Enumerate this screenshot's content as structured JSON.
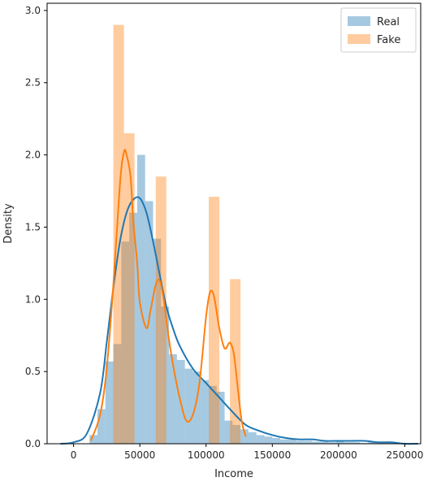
{
  "chart_data": {
    "type": "histogram",
    "xlabel": "Income",
    "ylabel": "Density",
    "xlim": [
      -20000,
      262000
    ],
    "ylim": [
      0,
      3.05
    ],
    "xticks": [
      0,
      50000,
      100000,
      150000,
      200000,
      250000
    ],
    "xtick_labels": [
      "0",
      "50000",
      "100000",
      "150000",
      "200000",
      "250000"
    ],
    "yticks": [
      0.0,
      0.5,
      1.0,
      1.5,
      2.0,
      2.5,
      3.0
    ],
    "ytick_labels": [
      "0.0",
      "0.5",
      "1.0",
      "1.5",
      "2.0",
      "2.5",
      "3.0"
    ],
    "scale_note": "density values in units of 1e-5",
    "legend_position": "upper right",
    "series": [
      {
        "name": "Real",
        "color": "#1f77b4",
        "bins": [
          {
            "x0": 12000,
            "x1": 18000,
            "value": 0.06
          },
          {
            "x0": 18000,
            "x1": 24000,
            "value": 0.24
          },
          {
            "x0": 24000,
            "x1": 30000,
            "value": 0.57
          },
          {
            "x0": 30000,
            "x1": 36000,
            "value": 0.69
          },
          {
            "x0": 36000,
            "x1": 42000,
            "value": 1.4
          },
          {
            "x0": 42000,
            "x1": 48000,
            "value": 1.6
          },
          {
            "x0": 48000,
            "x1": 54000,
            "value": 2.0
          },
          {
            "x0": 54000,
            "x1": 60000,
            "value": 1.68
          },
          {
            "x0": 60000,
            "x1": 66000,
            "value": 1.42
          },
          {
            "x0": 66000,
            "x1": 72000,
            "value": 0.95
          },
          {
            "x0": 72000,
            "x1": 78000,
            "value": 0.62
          },
          {
            "x0": 78000,
            "x1": 84000,
            "value": 0.58
          },
          {
            "x0": 84000,
            "x1": 90000,
            "value": 0.52
          },
          {
            "x0": 90000,
            "x1": 96000,
            "value": 0.5
          },
          {
            "x0": 96000,
            "x1": 102000,
            "value": 0.44
          },
          {
            "x0": 102000,
            "x1": 108000,
            "value": 0.4
          },
          {
            "x0": 108000,
            "x1": 114000,
            "value": 0.36
          },
          {
            "x0": 114000,
            "x1": 120000,
            "value": 0.16
          },
          {
            "x0": 120000,
            "x1": 126000,
            "value": 0.13
          },
          {
            "x0": 126000,
            "x1": 132000,
            "value": 0.1
          },
          {
            "x0": 132000,
            "x1": 138000,
            "value": 0.08
          },
          {
            "x0": 138000,
            "x1": 144000,
            "value": 0.06
          },
          {
            "x0": 144000,
            "x1": 150000,
            "value": 0.05
          },
          {
            "x0": 150000,
            "x1": 156000,
            "value": 0.04
          },
          {
            "x0": 156000,
            "x1": 162000,
            "value": 0.03
          },
          {
            "x0": 162000,
            "x1": 168000,
            "value": 0.03
          },
          {
            "x0": 168000,
            "x1": 174000,
            "value": 0.02
          },
          {
            "x0": 174000,
            "x1": 180000,
            "value": 0.02
          },
          {
            "x0": 180000,
            "x1": 186000,
            "value": 0.015
          },
          {
            "x0": 186000,
            "x1": 192000,
            "value": 0.015
          },
          {
            "x0": 192000,
            "x1": 198000,
            "value": 0.01
          },
          {
            "x0": 198000,
            "x1": 204000,
            "value": 0.02
          },
          {
            "x0": 204000,
            "x1": 210000,
            "value": 0.01
          },
          {
            "x0": 210000,
            "x1": 216000,
            "value": 0.01
          },
          {
            "x0": 216000,
            "x1": 222000,
            "value": 0.005
          },
          {
            "x0": 222000,
            "x1": 228000,
            "value": 0.01
          },
          {
            "x0": 228000,
            "x1": 234000,
            "value": 0.005
          },
          {
            "x0": 234000,
            "x1": 240000,
            "value": 0.01
          },
          {
            "x0": 240000,
            "x1": 246000,
            "value": 0.005
          }
        ],
        "kde": {
          "x": [
            -10000,
            0,
            10000,
            20000,
            25000,
            30000,
            35000,
            40000,
            45000,
            50000,
            55000,
            60000,
            65000,
            70000,
            75000,
            80000,
            90000,
            100000,
            110000,
            120000,
            130000,
            140000,
            150000,
            160000,
            170000,
            180000,
            190000,
            200000,
            210000,
            220000,
            230000,
            240000,
            250000,
            260000
          ],
          "y": [
            0.0,
            0.01,
            0.07,
            0.35,
            0.7,
            1.08,
            1.4,
            1.6,
            1.69,
            1.7,
            1.6,
            1.4,
            1.17,
            0.95,
            0.8,
            0.68,
            0.52,
            0.42,
            0.32,
            0.22,
            0.13,
            0.09,
            0.06,
            0.04,
            0.03,
            0.03,
            0.02,
            0.02,
            0.02,
            0.02,
            0.01,
            0.01,
            0.0,
            0.0
          ]
        }
      },
      {
        "name": "Fake",
        "color": "#ff7f0e",
        "bins": [
          {
            "x0": 30000,
            "x1": 38000,
            "value": 2.9
          },
          {
            "x0": 38000,
            "x1": 46000,
            "value": 2.15
          },
          {
            "x0": 46000,
            "x1": 54000,
            "value": 0.0
          },
          {
            "x0": 54000,
            "x1": 62000,
            "value": 0.0
          },
          {
            "x0": 62000,
            "x1": 70000,
            "value": 1.85
          },
          {
            "x0": 70000,
            "x1": 78000,
            "value": 0.0
          },
          {
            "x0": 78000,
            "x1": 86000,
            "value": 0.0
          },
          {
            "x0": 86000,
            "x1": 94000,
            "value": 0.0
          },
          {
            "x0": 94000,
            "x1": 102000,
            "value": 0.0
          },
          {
            "x0": 102000,
            "x1": 110000,
            "value": 1.71
          },
          {
            "x0": 110000,
            "x1": 118000,
            "value": 0.0
          },
          {
            "x0": 118000,
            "x1": 126000,
            "value": 1.14
          }
        ],
        "kde": {
          "x": [
            13000,
            20000,
            25000,
            30000,
            35000,
            38000,
            40000,
            43000,
            45000,
            48000,
            50000,
            55000,
            58000,
            62000,
            65000,
            68000,
            72000,
            76000,
            80000,
            85000,
            90000,
            95000,
            100000,
            103000,
            106000,
            110000,
            114000,
            118000,
            121000,
            124000,
            127000,
            130000
          ],
          "y": [
            0.02,
            0.2,
            0.52,
            1.1,
            1.8,
            2.02,
            2.0,
            1.85,
            1.55,
            1.25,
            0.98,
            0.8,
            0.92,
            1.1,
            1.13,
            1.0,
            0.72,
            0.5,
            0.32,
            0.16,
            0.2,
            0.42,
            0.88,
            1.05,
            1.02,
            0.8,
            0.66,
            0.7,
            0.62,
            0.38,
            0.15,
            0.05
          ]
        }
      }
    ]
  }
}
